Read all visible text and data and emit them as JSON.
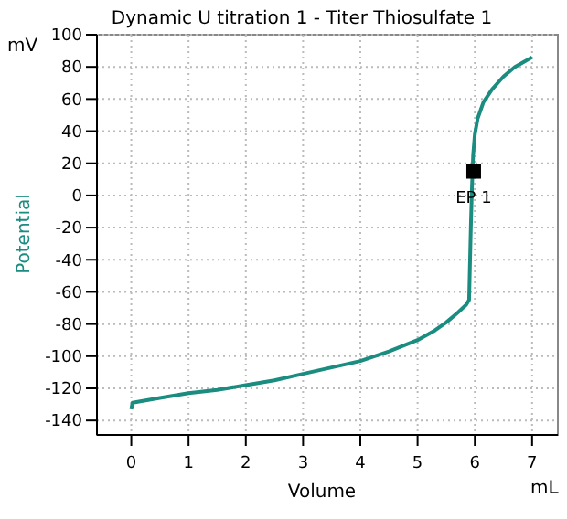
{
  "chart_data": {
    "type": "line",
    "title": "Dynamic U titration 1 - Titer Thiosulfate  1",
    "xlabel": "Volume",
    "ylabel": "Potential",
    "annotations": [
      "mV",
      "mL",
      {
        "text": "EP 1",
        "x": 5.98,
        "y": 15
      }
    ],
    "xlim": [
      -0.6,
      7.45
    ],
    "ylim": [
      -149,
      100
    ],
    "xticks": [
      0,
      1,
      2,
      3,
      4,
      5,
      6,
      7
    ],
    "yticks": [
      -140,
      -120,
      -100,
      -80,
      -60,
      -40,
      -20,
      0,
      20,
      40,
      60,
      80,
      100
    ],
    "grid": true,
    "series": [
      {
        "color": "#1a8c80",
        "x": [
          0,
          0.02,
          0.5,
          1,
          1.5,
          2,
          2.5,
          3,
          3.5,
          4,
          4.5,
          5,
          5.3,
          5.5,
          5.7,
          5.85,
          5.9,
          5.91,
          5.93,
          5.95,
          5.97,
          6.0,
          6.05,
          6.15,
          6.3,
          6.5,
          6.7,
          6.85,
          7
        ],
        "values": [
          -133,
          -129,
          -126,
          -123,
          -121,
          -118,
          -115,
          -111,
          -107,
          -103,
          -97,
          -90,
          -84,
          -79,
          -73,
          -68,
          -65,
          -50,
          -20,
          5,
          25,
          38,
          48,
          58,
          66,
          74,
          80,
          83,
          86
        ]
      },
      {
        "type": "scatter",
        "marker": "square",
        "color": "#000000",
        "x": [
          5.98
        ],
        "values": [
          15
        ]
      }
    ]
  }
}
